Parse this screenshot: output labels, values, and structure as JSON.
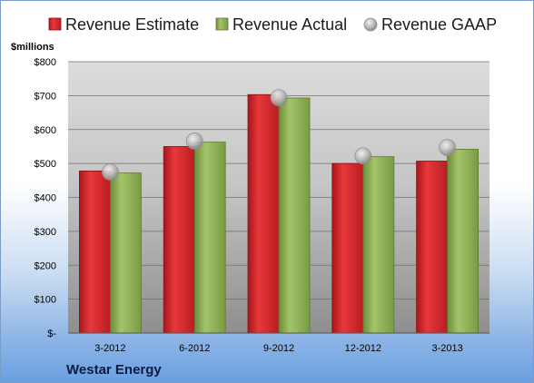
{
  "chart_data": {
    "type": "bar",
    "title": "",
    "ylabel": "$millions",
    "categories": [
      "3-2012",
      "6-2012",
      "9-2012",
      "12-2012",
      "3-2013"
    ],
    "yticks": [
      "$-",
      "$100",
      "$200",
      "$300",
      "$400",
      "$500",
      "$600",
      "$700",
      "$800"
    ],
    "ylim": [
      0,
      800
    ],
    "grid": true,
    "legend_position": "top",
    "series": [
      {
        "name": "Revenue Estimate",
        "type": "bar",
        "color": "#d42427",
        "values": [
          478,
          550,
          703,
          500,
          507
        ]
      },
      {
        "name": "Revenue Actual",
        "type": "bar",
        "color": "#8aaf52",
        "values": [
          472,
          563,
          693,
          520,
          542
        ]
      },
      {
        "name": "Revenue GAAP",
        "type": "marker",
        "color": "#b8b8b8",
        "values": [
          475,
          566,
          694,
          522,
          547
        ]
      }
    ],
    "company": "Westar Energy"
  }
}
